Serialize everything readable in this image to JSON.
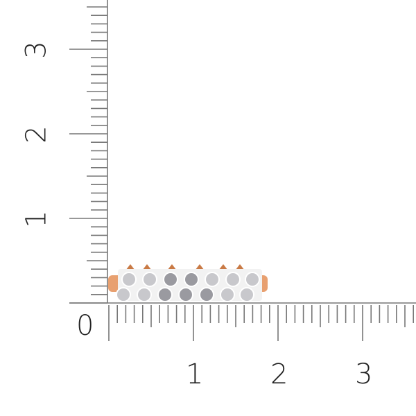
{
  "ruler": {
    "origin_label": "0",
    "x_labels": [
      "1",
      "2",
      "3"
    ],
    "y_labels": [
      "1",
      "2",
      "3"
    ],
    "minor_divisions": 10
  },
  "colors": {
    "ruler": "#777777",
    "gold": "#e8a070",
    "gold_dark": "#c97a45",
    "metal": "#f2f2f2",
    "stone": "#c8c8cc"
  }
}
